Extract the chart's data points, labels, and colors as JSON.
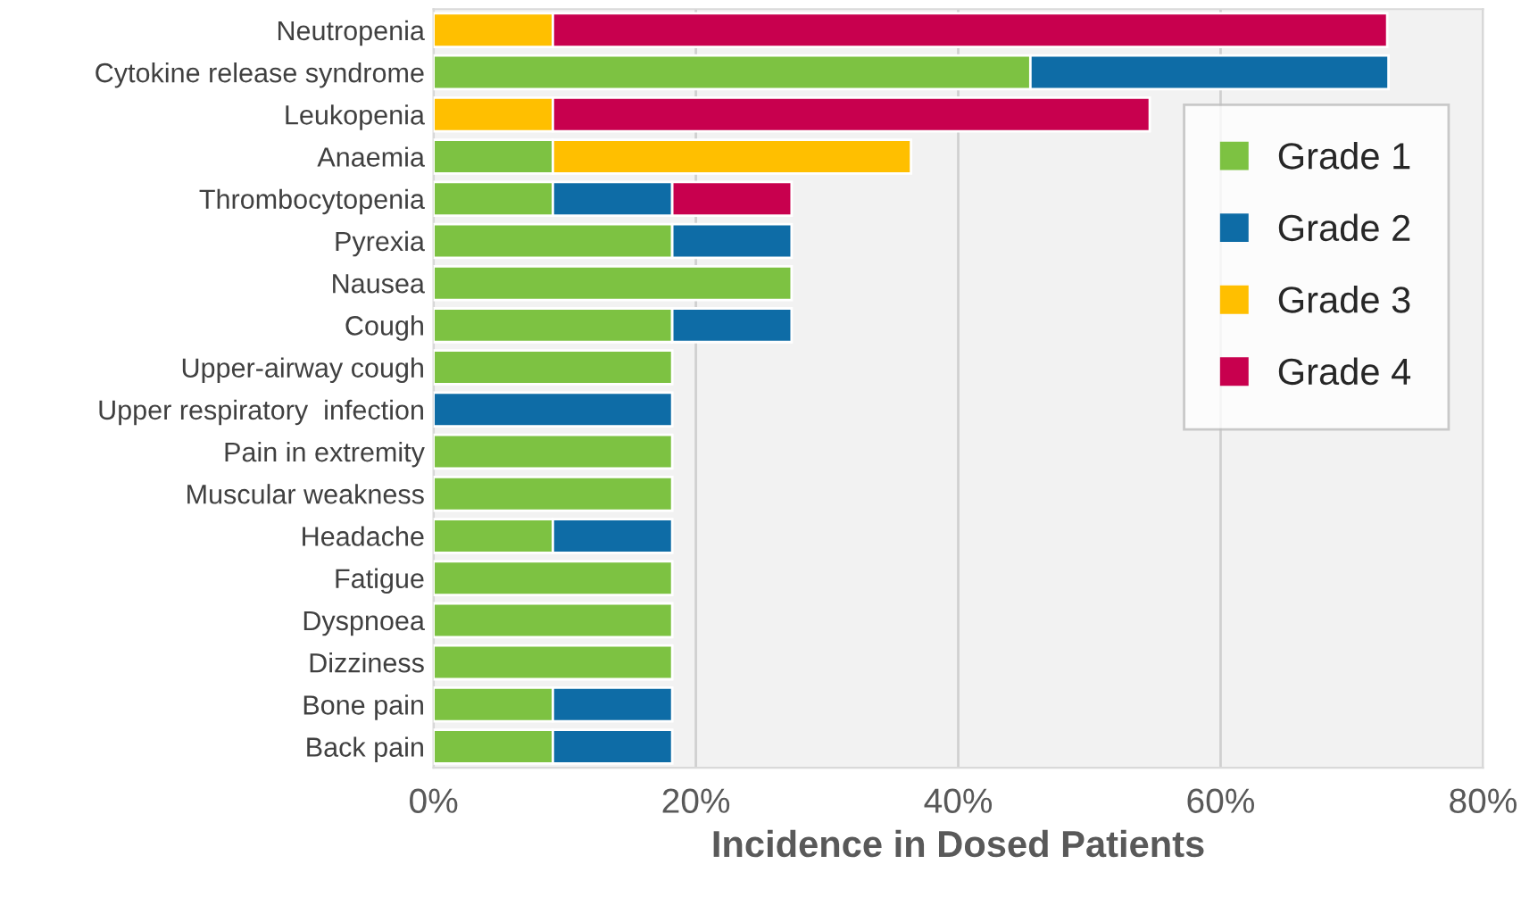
{
  "chart_data": {
    "type": "bar",
    "orientation": "horizontal",
    "stacked": true,
    "xlabel": "Incidence in Dosed Patients",
    "categories": [
      "Neutropenia",
      "Cytokine release syndrome",
      "Leukopenia",
      "Anaemia",
      "Thrombocytopenia",
      "Pyrexia",
      "Nausea",
      "Cough",
      "Upper-airway cough",
      "Upper respiratory  infection",
      "Pain in extremity",
      "Muscular weakness",
      "Headache",
      "Fatigue",
      "Dyspnoea",
      "Dizziness",
      "Bone pain",
      "Back pain"
    ],
    "series": [
      {
        "name": "Grade 1",
        "color": "#7dc242",
        "values": [
          null,
          45.5,
          null,
          9.1,
          9.1,
          18.2,
          27.3,
          18.2,
          18.2,
          null,
          18.2,
          18.2,
          9.1,
          18.2,
          18.2,
          18.2,
          9.1,
          9.1
        ]
      },
      {
        "name": "Grade 2",
        "color": "#0e6ca6",
        "values": [
          null,
          27.3,
          null,
          null,
          9.1,
          9.1,
          null,
          9.1,
          null,
          18.2,
          null,
          null,
          9.1,
          null,
          null,
          null,
          9.1,
          9.1
        ]
      },
      {
        "name": "Grade 3",
        "color": "#ffbf00",
        "values": [
          9.1,
          null,
          9.1,
          27.3,
          null,
          null,
          null,
          null,
          null,
          null,
          null,
          null,
          null,
          null,
          null,
          null,
          null,
          null
        ]
      },
      {
        "name": "Grade 4",
        "color": "#c8004e",
        "values": [
          63.6,
          null,
          45.5,
          null,
          9.1,
          null,
          null,
          null,
          null,
          null,
          null,
          null,
          null,
          null,
          null,
          null,
          null,
          null
        ]
      }
    ],
    "xlim": [
      0,
      80
    ],
    "xticks": [
      {
        "value": 0,
        "label": "0%"
      },
      {
        "value": 20,
        "label": "20%"
      },
      {
        "value": 40,
        "label": "40%"
      },
      {
        "value": 60,
        "label": "60%"
      },
      {
        "value": 80,
        "label": "80%"
      }
    ],
    "grid": "x",
    "legend": "right"
  }
}
